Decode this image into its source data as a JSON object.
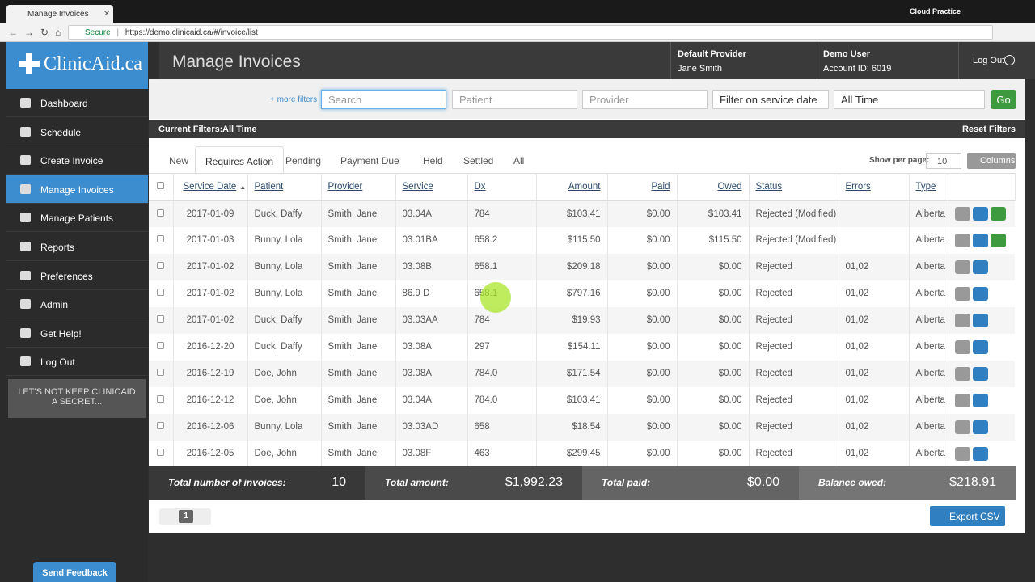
{
  "browser": {
    "tab_title": "Manage Invoices",
    "profile": "Cloud Practice",
    "secure": "Secure",
    "url": "https://demo.clinicaid.ca/#/invoice/list"
  },
  "sidebar": {
    "logo": "ClinicAid.ca",
    "nav": [
      "Dashboard",
      "Schedule",
      "Create Invoice",
      "Manage Invoices",
      "Manage Patients",
      "Reports",
      "Preferences",
      "Admin",
      "Get Help!",
      "Log Out"
    ],
    "active": 3,
    "promo": "LET'S NOT KEEP CLINICAID A SECRET...",
    "feedback": "Send Feedback"
  },
  "header": {
    "title": "Manage Invoices",
    "provider_label": "Default Provider",
    "provider_name": "Jane Smith",
    "user_label": "Demo User",
    "account": "Account ID: 6019",
    "logout": "Log Out"
  },
  "filters": {
    "more": "+ more filters",
    "search": "Search",
    "patient": "Patient",
    "provider": "Provider",
    "date_filter": "Filter on service date",
    "time": "All Time",
    "go": "Go"
  },
  "current_filters": {
    "label": "Current Filters:",
    "value": "All Time",
    "reset": "Reset Filters"
  },
  "tabs": {
    "items": [
      "New",
      "Requires Action",
      "Pending",
      "Payment Due",
      "Held",
      "Settled",
      "All"
    ],
    "active": 1
  },
  "per_page": {
    "label": "Show per page:",
    "value": "10",
    "columns": "Columns"
  },
  "table": {
    "columns": [
      "Service Date",
      "Patient",
      "Provider",
      "Service",
      "Dx",
      "Amount",
      "Paid",
      "Owed",
      "Status",
      "Errors",
      "Type"
    ],
    "rows": [
      [
        "2017-01-09",
        "Duck, Daffy",
        "Smith, Jane",
        "03.04A",
        "784",
        "$103.41",
        "$0.00",
        "$103.41",
        "Rejected (Modified)",
        null,
        "Alberta"
      ],
      [
        "2017-01-03",
        "Bunny, Lola",
        "Smith, Jane",
        "03.01BA",
        "658.2",
        "$115.50",
        "$0.00",
        "$115.50",
        "Rejected (Modified)",
        null,
        "Alberta"
      ],
      [
        "2017-01-02",
        "Bunny, Lola",
        "Smith, Jane",
        "03.08B",
        "658.1",
        "$209.18",
        "$0.00",
        "$0.00",
        "Rejected",
        "01,02",
        "Alberta"
      ],
      [
        "2017-01-02",
        "Bunny, Lola",
        "Smith, Jane",
        "86.9 D",
        "658.1",
        "$797.16",
        "$0.00",
        "$0.00",
        "Rejected",
        "01,02",
        "Alberta"
      ],
      [
        "2017-01-02",
        "Duck, Daffy",
        "Smith, Jane",
        "03.03AA",
        "784",
        "$19.93",
        "$0.00",
        "$0.00",
        "Rejected",
        "01,02",
        "Alberta"
      ],
      [
        "2016-12-20",
        "Duck, Daffy",
        "Smith, Jane",
        "03.08A",
        "297",
        "$154.11",
        "$0.00",
        "$0.00",
        "Rejected",
        "01,02",
        "Alberta"
      ],
      [
        "2016-12-19",
        "Doe, John",
        "Smith, Jane",
        "03.08A",
        "784.0",
        "$171.54",
        "$0.00",
        "$0.00",
        "Rejected",
        "01,02",
        "Alberta"
      ],
      [
        "2016-12-12",
        "Doe, John",
        "Smith, Jane",
        "03.04A",
        "784.0",
        "$103.41",
        "$0.00",
        "$0.00",
        "Rejected",
        "01,02",
        "Alberta"
      ],
      [
        "2016-12-06",
        "Bunny, Lola",
        "Smith, Jane",
        "03.03AD",
        "658",
        "$18.54",
        "$0.00",
        "$0.00",
        "Rejected",
        "01,02",
        "Alberta"
      ],
      [
        "2016-12-05",
        "Doe, John",
        "Smith, Jane",
        "03.08F",
        "463",
        "$299.45",
        "$0.00",
        "$0.00",
        "Rejected",
        "01,02",
        "Alberta"
      ]
    ]
  },
  "totals": [
    {
      "label": "Total number of invoices:",
      "value": "10"
    },
    {
      "label": "Total amount:",
      "value": "$1,992.23"
    },
    {
      "label": "Total paid:",
      "value": "$0.00"
    },
    {
      "label": "Balance owed:",
      "value": "$218.91"
    }
  ],
  "pagination": {
    "page": "1"
  },
  "export": "Export CSV"
}
